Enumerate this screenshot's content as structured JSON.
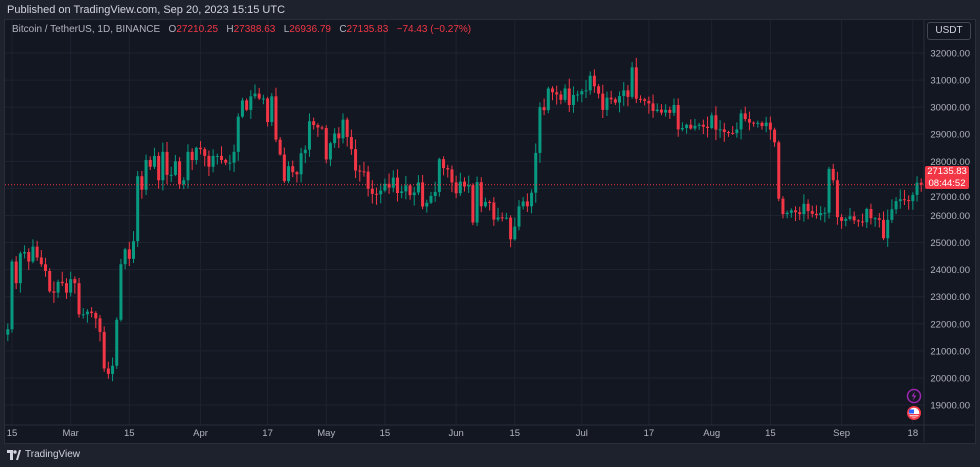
{
  "published": "Published on TradingView.com, Sep 20, 2023 15:15 UTC",
  "legend": {
    "symbol": "Bitcoin / TetherUS, 1D, BINANCE",
    "o_label": "O",
    "o": "27210.25",
    "h_label": "H",
    "h": "27388.63",
    "l_label": "L",
    "l": "26936.79",
    "c_label": "C",
    "c": "27135.83",
    "change": "−74.43 (−0.27%)"
  },
  "currency": "USDT",
  "price_tag": {
    "price": "27135.83",
    "countdown": "08:44:52"
  },
  "footer": {
    "brand": "TradingView"
  },
  "colors": {
    "up": "#089981",
    "down": "#f23645",
    "bg": "#131722"
  },
  "chart_data": {
    "type": "candlestick",
    "title": "Bitcoin / TetherUS, 1D, BINANCE",
    "start_date": "2023-02-14",
    "ylim": [
      18400,
      33200
    ],
    "y_ticks": [
      "32000.00",
      "31000.00",
      "30000.00",
      "29000.00",
      "28000.00",
      "27000.00",
      "26000.00",
      "25000.00",
      "24000.00",
      "23000.00",
      "22000.00",
      "21000.00",
      "20000.00",
      "19000.00"
    ],
    "y_tick_values": [
      32000,
      31000,
      30000,
      29000,
      28000,
      27000,
      26000,
      25000,
      24000,
      23000,
      22000,
      21000,
      20000,
      19000
    ],
    "x_ticks": [
      {
        "label": "15",
        "day": 1
      },
      {
        "label": "Mar",
        "day": 15
      },
      {
        "label": "15",
        "day": 29
      },
      {
        "label": "Apr",
        "day": 46
      },
      {
        "label": "17",
        "day": 62
      },
      {
        "label": "May",
        "day": 76
      },
      {
        "label": "15",
        "day": 90
      },
      {
        "label": "Jun",
        "day": 107
      },
      {
        "label": "15",
        "day": 121
      },
      {
        "label": "Jul",
        "day": 137
      },
      {
        "label": "17",
        "day": 153
      },
      {
        "label": "Aug",
        "day": 168
      },
      {
        "label": "15",
        "day": 182
      },
      {
        "label": "Sep",
        "day": 199
      },
      {
        "label": "18",
        "day": 216
      }
    ],
    "first_open": 21600,
    "closes": [
      21800,
      24300,
      23500,
      24600,
      24650,
      24300,
      24850,
      24450,
      24200,
      23950,
      23200,
      23150,
      23550,
      23500,
      23150,
      23650,
      23500,
      22350,
      22350,
      22450,
      22400,
      22200,
      21700,
      20350,
      20150,
      20450,
      22150,
      24200,
      24750,
      24400,
      25050,
      27450,
      26950,
      28050,
      27800,
      28200,
      27300,
      28350,
      27500,
      27500,
      28000,
      27150,
      27300,
      28350,
      28050,
      28500,
      28450,
      28200,
      27800,
      28200,
      28200,
      28050,
      27950,
      27950,
      28350,
      29650,
      30250,
      29900,
      30400,
      30500,
      30320,
      30320,
      29450,
      30400,
      28800,
      28250,
      27270,
      27820,
      27600,
      27520,
      28300,
      28430,
      29480,
      29340,
      29250,
      29230,
      28070,
      28670,
      29030,
      28850,
      29540,
      28900,
      28450,
      27660,
      27630,
      27620,
      26990,
      26800,
      26780,
      26920,
      27170,
      27030,
      27400,
      26830,
      26890,
      27110,
      26750,
      26850,
      27220,
      26330,
      26470,
      26720,
      26870,
      28080,
      27750,
      27700,
      27220,
      26820,
      27250,
      27070,
      27120,
      25740,
      27230,
      26340,
      26500,
      26480,
      25850,
      25930,
      25900,
      25920,
      25120,
      25590,
      26340,
      26520,
      26340,
      26840,
      28310,
      30000,
      29890,
      30690,
      30550,
      30470,
      30270,
      30690,
      30080,
      30450,
      30470,
      30590,
      30620,
      31160,
      30770,
      30500,
      29900,
      30350,
      30290,
      30170,
      30410,
      30620,
      30380,
      31470,
      30310,
      30290,
      30230,
      30140,
      29860,
      29910,
      29800,
      29900,
      29790,
      30080,
      29180,
      29230,
      29350,
      29210,
      29310,
      29350,
      29280,
      29230,
      29700,
      29170,
      29180,
      29080,
      29050,
      29040,
      29180,
      29770,
      29560,
      29430,
      29400,
      29420,
      29300,
      29430,
      29170,
      28700,
      26620,
      26050,
      26100,
      26190,
      26120,
      26050,
      26430,
      26160,
      26060,
      26010,
      26090,
      26100,
      27720,
      27300,
      25940,
      25800,
      25870,
      25970,
      25820,
      25780,
      25750,
      26240,
      25900,
      25900,
      25840,
      25160,
      25840,
      26230,
      26530,
      26600,
      26570,
      26530,
      26760,
      27210,
      27135.83
    ],
    "last_price": 27135.83
  }
}
